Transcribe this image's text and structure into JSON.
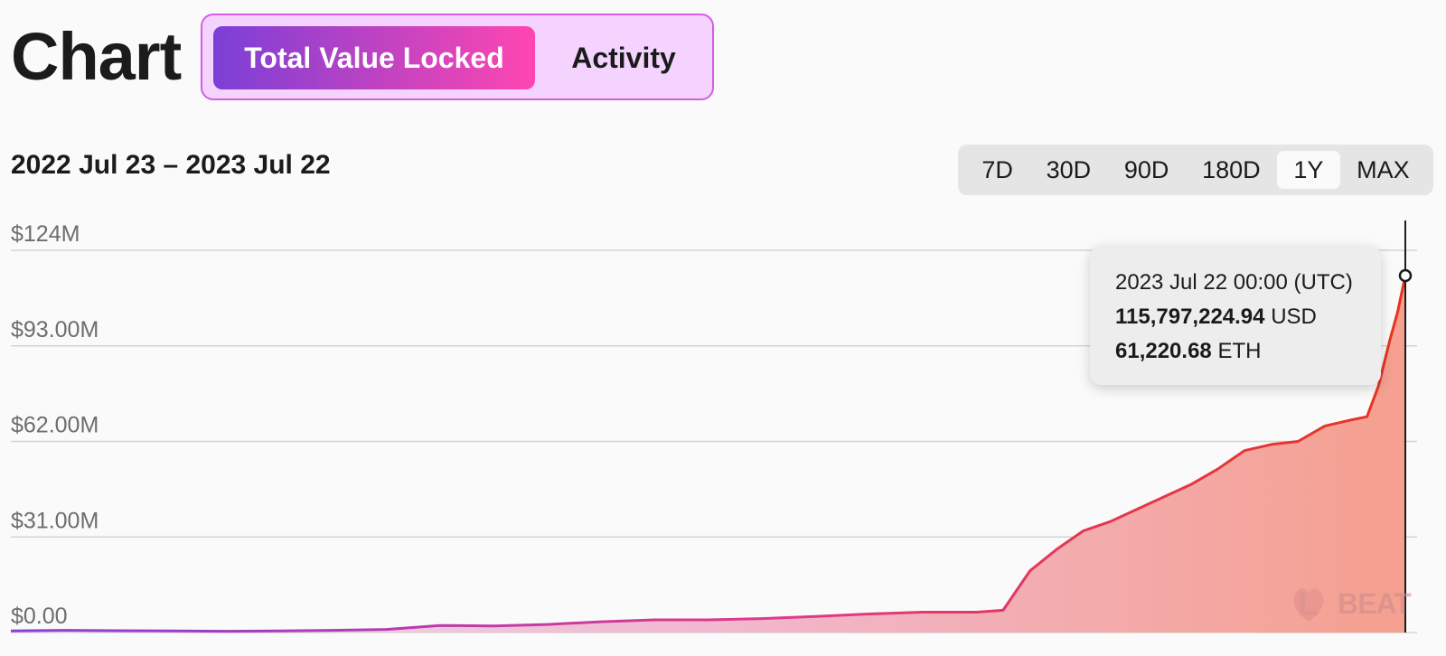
{
  "header": {
    "title": "Chart",
    "tabs": [
      {
        "label": "Total Value Locked",
        "active": true
      },
      {
        "label": "Activity",
        "active": false
      }
    ]
  },
  "date_range": "2022 Jul 23 – 2023 Jul 22",
  "ranges": [
    "7D",
    "30D",
    "90D",
    "180D",
    "1Y",
    "MAX"
  ],
  "selected_range": "1Y",
  "tooltip": {
    "date": "2023 Jul 22 00:00 (UTC)",
    "usd_value": "115,797,224.94",
    "usd_unit": "USD",
    "eth_value": "61,220.68",
    "eth_unit": "ETH"
  },
  "logo": {
    "text": "L2BEAT",
    "left": "L",
    "right": "BEAT"
  },
  "colors": {
    "gradient_start": "#7b3fd6",
    "gradient_end": "#ff46b0",
    "line_end": "#e8331c",
    "tab_bg": "#f4d4ff"
  },
  "chart_data": {
    "type": "area",
    "x_start": "2022-07-23",
    "x_end": "2023-07-22",
    "unit": "USD (millions)",
    "ylim": [
      0,
      124
    ],
    "y_ticks": [
      {
        "value": 0,
        "label": "$0.00"
      },
      {
        "value": 31,
        "label": "$31.00M"
      },
      {
        "value": 62,
        "label": "$62.00M"
      },
      {
        "value": 93,
        "label": "$93.00M"
      },
      {
        "value": 124,
        "label": "$124M"
      }
    ],
    "grid": true,
    "x": [
      "2022-07-23",
      "2022-08-06",
      "2022-08-20",
      "2022-09-03",
      "2022-09-17",
      "2022-10-01",
      "2022-10-15",
      "2022-10-29",
      "2022-11-12",
      "2022-11-26",
      "2022-12-10",
      "2022-12-24",
      "2023-01-07",
      "2023-01-21",
      "2023-02-04",
      "2023-02-18",
      "2023-03-04",
      "2023-03-18",
      "2023-04-01",
      "2023-04-08",
      "2023-04-15",
      "2023-04-22",
      "2023-04-29",
      "2023-05-06",
      "2023-05-13",
      "2023-05-20",
      "2023-05-27",
      "2023-06-03",
      "2023-06-10",
      "2023-06-17",
      "2023-06-24",
      "2023-07-01",
      "2023-07-08",
      "2023-07-12",
      "2023-07-15",
      "2023-07-18",
      "2023-07-20",
      "2023-07-22"
    ],
    "values": [
      0.5,
      0.7,
      0.6,
      0.5,
      0.4,
      0.5,
      0.7,
      1.0,
      2.3,
      2.1,
      2.6,
      3.5,
      4.1,
      4.1,
      4.5,
      5.2,
      6.0,
      6.6,
      6.6,
      7.2,
      20.0,
      27.0,
      33.0,
      36.0,
      40.0,
      44.0,
      48.0,
      53.0,
      59.0,
      61.0,
      62.0,
      67.0,
      69.0,
      70.0,
      80.0,
      95.0,
      104.0,
      115.8
    ],
    "highlight": {
      "x": "2023-07-22",
      "value": 115.8
    }
  }
}
